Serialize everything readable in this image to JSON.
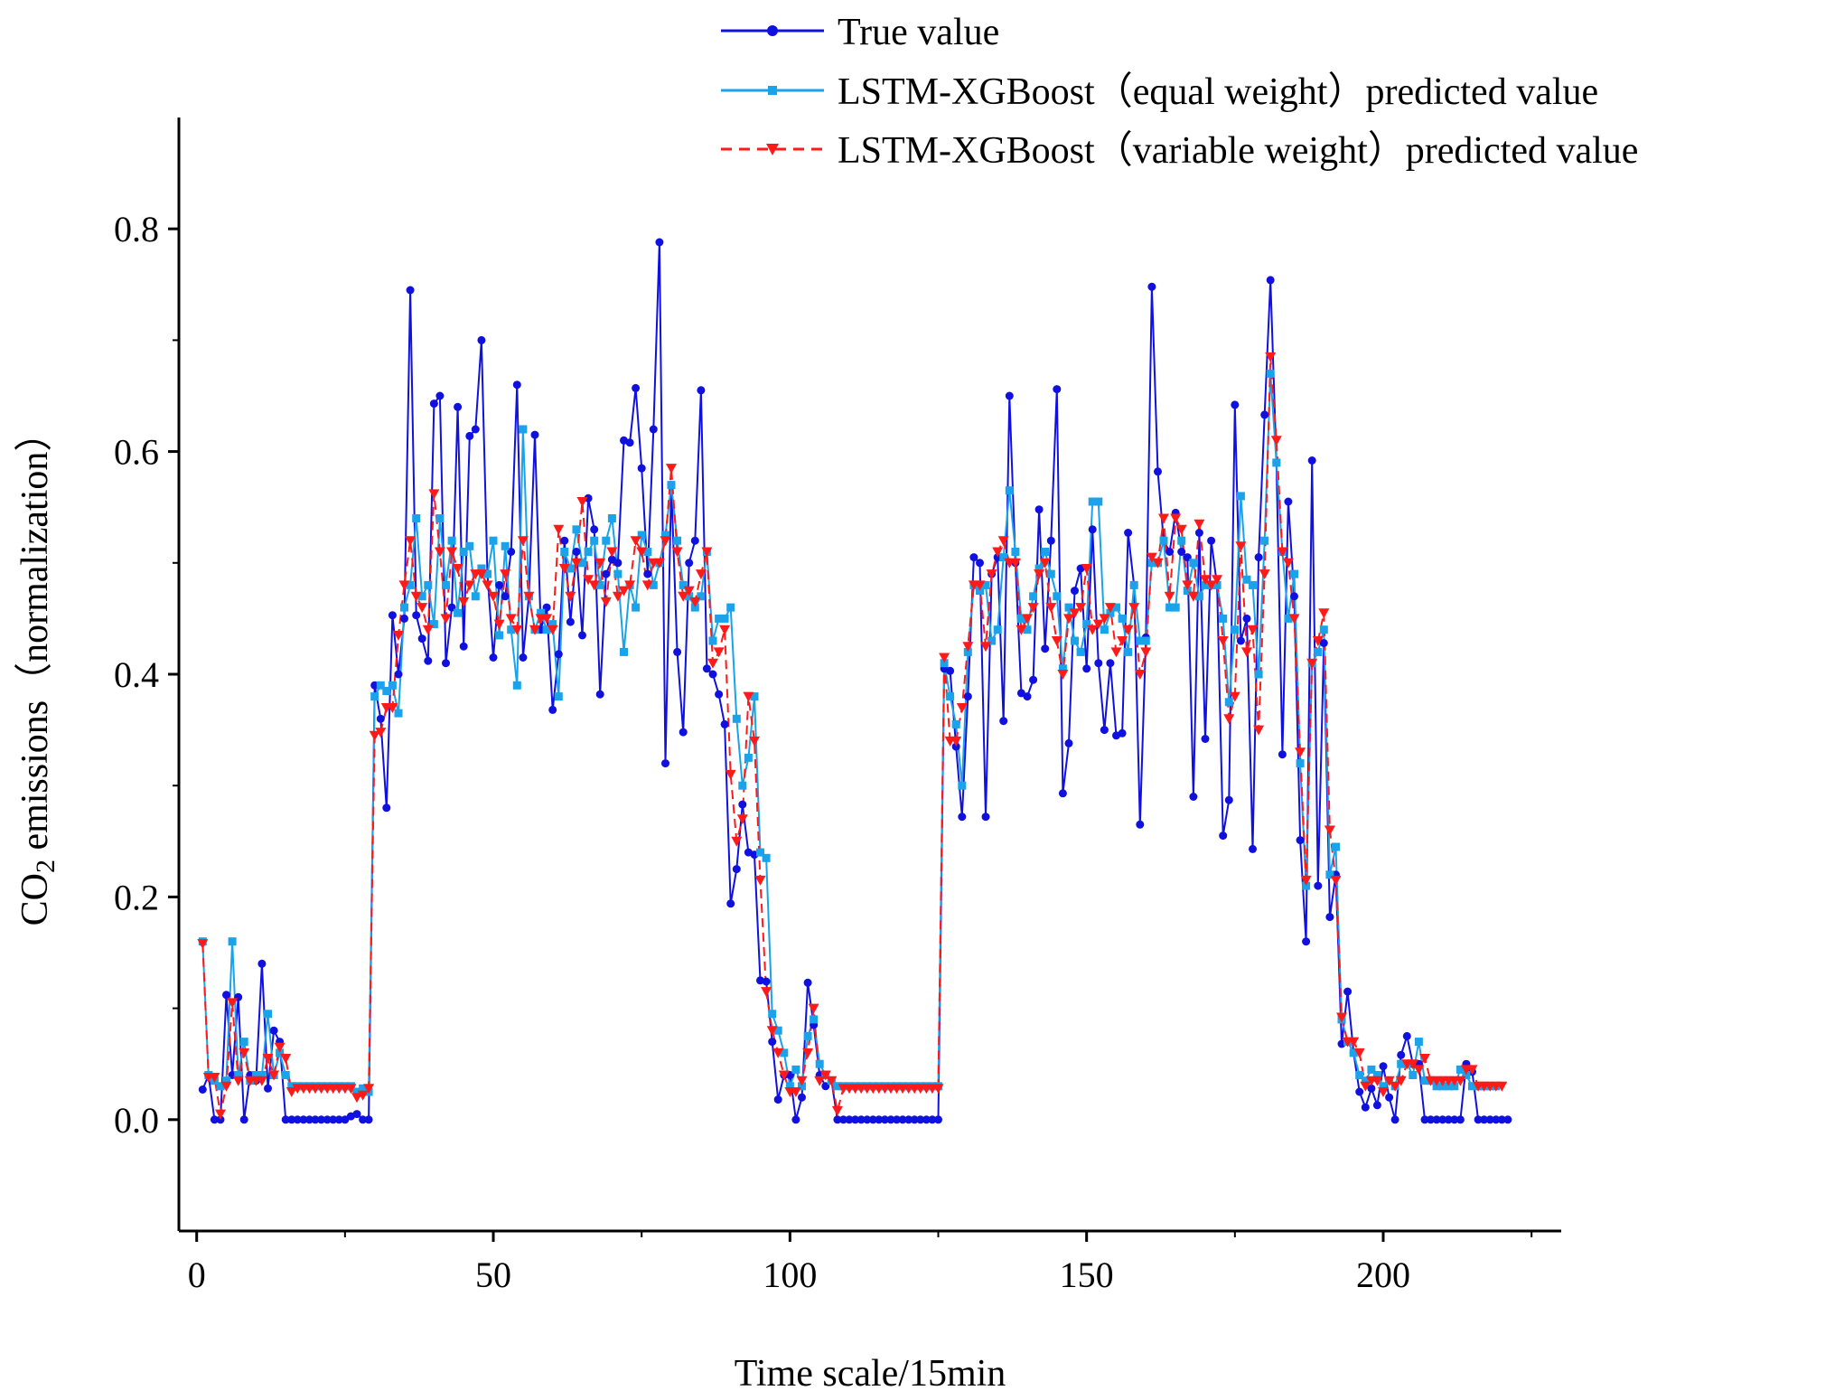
{
  "chart_data": {
    "type": "line",
    "title": "",
    "xlabel": "Time scale/15min",
    "ylabel": {
      "prefix": "CO",
      "subscript": "2",
      "suffix": " emissions（normalization）"
    },
    "xlim": [
      -3,
      230
    ],
    "ylim": [
      -0.1,
      0.9
    ],
    "xticks": [
      0,
      50,
      100,
      150,
      200
    ],
    "xtick_labels": [
      "0",
      "50",
      "100",
      "150",
      "200"
    ],
    "yticks": [
      0.0,
      0.2,
      0.4,
      0.6,
      0.8
    ],
    "ytick_labels": [
      "0.0",
      "0.2",
      "0.4",
      "0.6",
      "0.8"
    ],
    "legend_position": "top",
    "x_start": 1,
    "series": [
      {
        "name": "True value",
        "color": "#1010e0",
        "marker": "circle",
        "dash": "solid",
        "values": [
          0.027,
          0.04,
          0.0,
          0.0,
          0.112,
          0.04,
          0.11,
          0.0,
          0.04,
          0.035,
          0.14,
          0.028,
          0.08,
          0.07,
          0.0,
          0.0,
          0.0,
          0.0,
          0.0,
          0.0,
          0.0,
          0.0,
          0.0,
          0.0,
          0.0,
          0.003,
          0.005,
          0.0,
          0.0,
          0.39,
          0.36,
          0.28,
          0.453,
          0.4,
          0.45,
          0.745,
          0.453,
          0.432,
          0.412,
          0.643,
          0.65,
          0.41,
          0.46,
          0.64,
          0.425,
          0.614,
          0.62,
          0.7,
          0.49,
          0.415,
          0.48,
          0.47,
          0.51,
          0.66,
          0.415,
          0.47,
          0.615,
          0.44,
          0.46,
          0.368,
          0.418,
          0.52,
          0.447,
          0.51,
          0.435,
          0.558,
          0.53,
          0.382,
          0.49,
          0.503,
          0.5,
          0.61,
          0.608,
          0.657,
          0.585,
          0.49,
          0.62,
          0.788,
          0.32,
          0.57,
          0.42,
          0.348,
          0.5,
          0.52,
          0.655,
          0.405,
          0.4,
          0.382,
          0.355,
          0.194,
          0.225,
          0.283,
          0.24,
          0.238,
          0.125,
          0.124,
          0.07,
          0.018,
          0.04,
          0.04,
          0.0,
          0.02,
          0.123,
          0.085,
          0.04,
          0.03,
          0.035,
          0.0,
          0.0,
          0.0,
          0.0,
          0.0,
          0.0,
          0.0,
          0.0,
          0.0,
          0.0,
          0.0,
          0.0,
          0.0,
          0.0,
          0.0,
          0.0,
          0.0,
          0.0,
          0.405,
          0.403,
          0.335,
          0.272,
          0.38,
          0.505,
          0.5,
          0.272,
          0.49,
          0.505,
          0.358,
          0.65,
          0.5,
          0.383,
          0.38,
          0.395,
          0.548,
          0.423,
          0.52,
          0.656,
          0.293,
          0.338,
          0.475,
          0.495,
          0.405,
          0.53,
          0.41,
          0.35,
          0.41,
          0.345,
          0.347,
          0.527,
          0.48,
          0.265,
          0.433,
          0.748,
          0.582,
          0.52,
          0.51,
          0.545,
          0.51,
          0.505,
          0.29,
          0.527,
          0.342,
          0.52,
          0.48,
          0.255,
          0.287,
          0.642,
          0.43,
          0.45,
          0.243,
          0.505,
          0.633,
          0.754,
          0.59,
          0.328,
          0.555,
          0.47,
          0.251,
          0.16,
          0.592,
          0.21,
          0.428,
          0.182,
          0.22,
          0.068,
          0.115,
          0.06,
          0.025,
          0.011,
          0.028,
          0.013,
          0.048,
          0.02,
          0.0,
          0.058,
          0.075,
          0.05,
          0.05,
          0.0,
          0.0,
          0.0,
          0.0,
          0.0,
          0.0,
          0.0,
          0.05,
          0.043,
          0.0,
          0.0,
          0.0,
          0.0,
          0.0,
          0.0
        ]
      },
      {
        "name": "LSTM-XGBoost（equal weight）predicted value",
        "color": "#1aa3ea",
        "marker": "square",
        "dash": "solid",
        "values": [
          0.16,
          0.04,
          0.035,
          0.03,
          0.035,
          0.16,
          0.04,
          0.07,
          0.035,
          0.04,
          0.04,
          0.095,
          0.04,
          0.06,
          0.04,
          0.03,
          0.03,
          0.03,
          0.03,
          0.03,
          0.03,
          0.03,
          0.03,
          0.03,
          0.03,
          0.03,
          0.025,
          0.028,
          0.025,
          0.38,
          0.39,
          0.385,
          0.39,
          0.365,
          0.46,
          0.48,
          0.54,
          0.47,
          0.48,
          0.445,
          0.54,
          0.48,
          0.52,
          0.455,
          0.51,
          0.515,
          0.47,
          0.495,
          0.49,
          0.52,
          0.435,
          0.515,
          0.44,
          0.39,
          0.62,
          0.47,
          0.44,
          0.455,
          0.44,
          0.445,
          0.38,
          0.51,
          0.495,
          0.53,
          0.5,
          0.51,
          0.52,
          0.48,
          0.52,
          0.54,
          0.49,
          0.42,
          0.48,
          0.46,
          0.525,
          0.51,
          0.48,
          0.5,
          0.525,
          0.57,
          0.52,
          0.48,
          0.47,
          0.46,
          0.47,
          0.51,
          0.43,
          0.45,
          0.45,
          0.46,
          0.36,
          0.3,
          0.325,
          0.38,
          0.24,
          0.235,
          0.095,
          0.08,
          0.06,
          0.03,
          0.045,
          0.03,
          0.075,
          0.09,
          0.05,
          0.04,
          0.035,
          0.03,
          0.03,
          0.03,
          0.03,
          0.03,
          0.03,
          0.03,
          0.03,
          0.03,
          0.03,
          0.03,
          0.03,
          0.03,
          0.03,
          0.03,
          0.03,
          0.03,
          0.03,
          0.41,
          0.38,
          0.355,
          0.3,
          0.42,
          0.48,
          0.475,
          0.48,
          0.43,
          0.44,
          0.505,
          0.565,
          0.51,
          0.45,
          0.44,
          0.47,
          0.495,
          0.51,
          0.49,
          0.47,
          0.405,
          0.46,
          0.43,
          0.42,
          0.445,
          0.555,
          0.555,
          0.44,
          0.455,
          0.46,
          0.45,
          0.42,
          0.48,
          0.43,
          0.43,
          0.5,
          0.5,
          0.52,
          0.46,
          0.46,
          0.52,
          0.475,
          0.5,
          0.47,
          0.48,
          0.48,
          0.48,
          0.45,
          0.375,
          0.44,
          0.56,
          0.485,
          0.48,
          0.4,
          0.52,
          0.67,
          0.59,
          0.51,
          0.45,
          0.49,
          0.32,
          0.21,
          0.41,
          0.42,
          0.44,
          0.22,
          0.245,
          0.09,
          0.07,
          0.06,
          0.04,
          0.035,
          0.045,
          0.04,
          0.03,
          0.035,
          0.03,
          0.05,
          0.05,
          0.04,
          0.07,
          0.035,
          0.035,
          0.03,
          0.03,
          0.03,
          0.03,
          0.045,
          0.04,
          0.03,
          0.03,
          0.03,
          0.03,
          0.03
        ]
      },
      {
        "name": "LSTM-XGBoost（variable weight）predicted value",
        "color": "#ff1a1a",
        "marker": "triangle-down",
        "dash": "dashed",
        "values": [
          0.158,
          0.038,
          0.038,
          0.005,
          0.03,
          0.105,
          0.035,
          0.06,
          0.035,
          0.035,
          0.035,
          0.055,
          0.04,
          0.065,
          0.055,
          0.025,
          0.028,
          0.028,
          0.028,
          0.028,
          0.028,
          0.028,
          0.028,
          0.028,
          0.028,
          0.028,
          0.02,
          0.022,
          0.028,
          0.345,
          0.348,
          0.37,
          0.37,
          0.435,
          0.48,
          0.52,
          0.47,
          0.46,
          0.44,
          0.562,
          0.51,
          0.45,
          0.51,
          0.495,
          0.465,
          0.48,
          0.49,
          0.49,
          0.48,
          0.47,
          0.445,
          0.49,
          0.45,
          0.44,
          0.52,
          0.47,
          0.44,
          0.45,
          0.45,
          0.44,
          0.53,
          0.495,
          0.47,
          0.5,
          0.555,
          0.485,
          0.48,
          0.5,
          0.465,
          0.51,
          0.47,
          0.475,
          0.48,
          0.52,
          0.51,
          0.48,
          0.5,
          0.5,
          0.52,
          0.585,
          0.51,
          0.47,
          0.475,
          0.465,
          0.49,
          0.51,
          0.41,
          0.42,
          0.44,
          0.31,
          0.25,
          0.27,
          0.38,
          0.34,
          0.215,
          0.115,
          0.08,
          0.06,
          0.04,
          0.025,
          0.025,
          0.035,
          0.06,
          0.1,
          0.035,
          0.04,
          0.035,
          0.008,
          0.028,
          0.028,
          0.028,
          0.028,
          0.028,
          0.028,
          0.028,
          0.028,
          0.028,
          0.028,
          0.028,
          0.028,
          0.028,
          0.028,
          0.028,
          0.028,
          0.028,
          0.415,
          0.34,
          0.34,
          0.37,
          0.425,
          0.48,
          0.48,
          0.425,
          0.49,
          0.51,
          0.52,
          0.5,
          0.5,
          0.44,
          0.45,
          0.46,
          0.49,
          0.5,
          0.46,
          0.43,
          0.4,
          0.45,
          0.455,
          0.46,
          0.495,
          0.44,
          0.445,
          0.45,
          0.46,
          0.42,
          0.43,
          0.44,
          0.46,
          0.4,
          0.42,
          0.505,
          0.5,
          0.54,
          0.47,
          0.54,
          0.53,
          0.48,
          0.47,
          0.535,
          0.485,
          0.48,
          0.485,
          0.43,
          0.36,
          0.38,
          0.515,
          0.42,
          0.44,
          0.35,
          0.49,
          0.685,
          0.61,
          0.51,
          0.5,
          0.45,
          0.33,
          0.215,
          0.41,
          0.43,
          0.455,
          0.26,
          0.215,
          0.092,
          0.07,
          0.07,
          0.06,
          0.03,
          0.035,
          0.035,
          0.025,
          0.035,
          0.03,
          0.035,
          0.05,
          0.05,
          0.045,
          0.055,
          0.035,
          0.035,
          0.035,
          0.035,
          0.035,
          0.035,
          0.045,
          0.045,
          0.03,
          0.03,
          0.03,
          0.03,
          0.03
        ]
      }
    ]
  }
}
